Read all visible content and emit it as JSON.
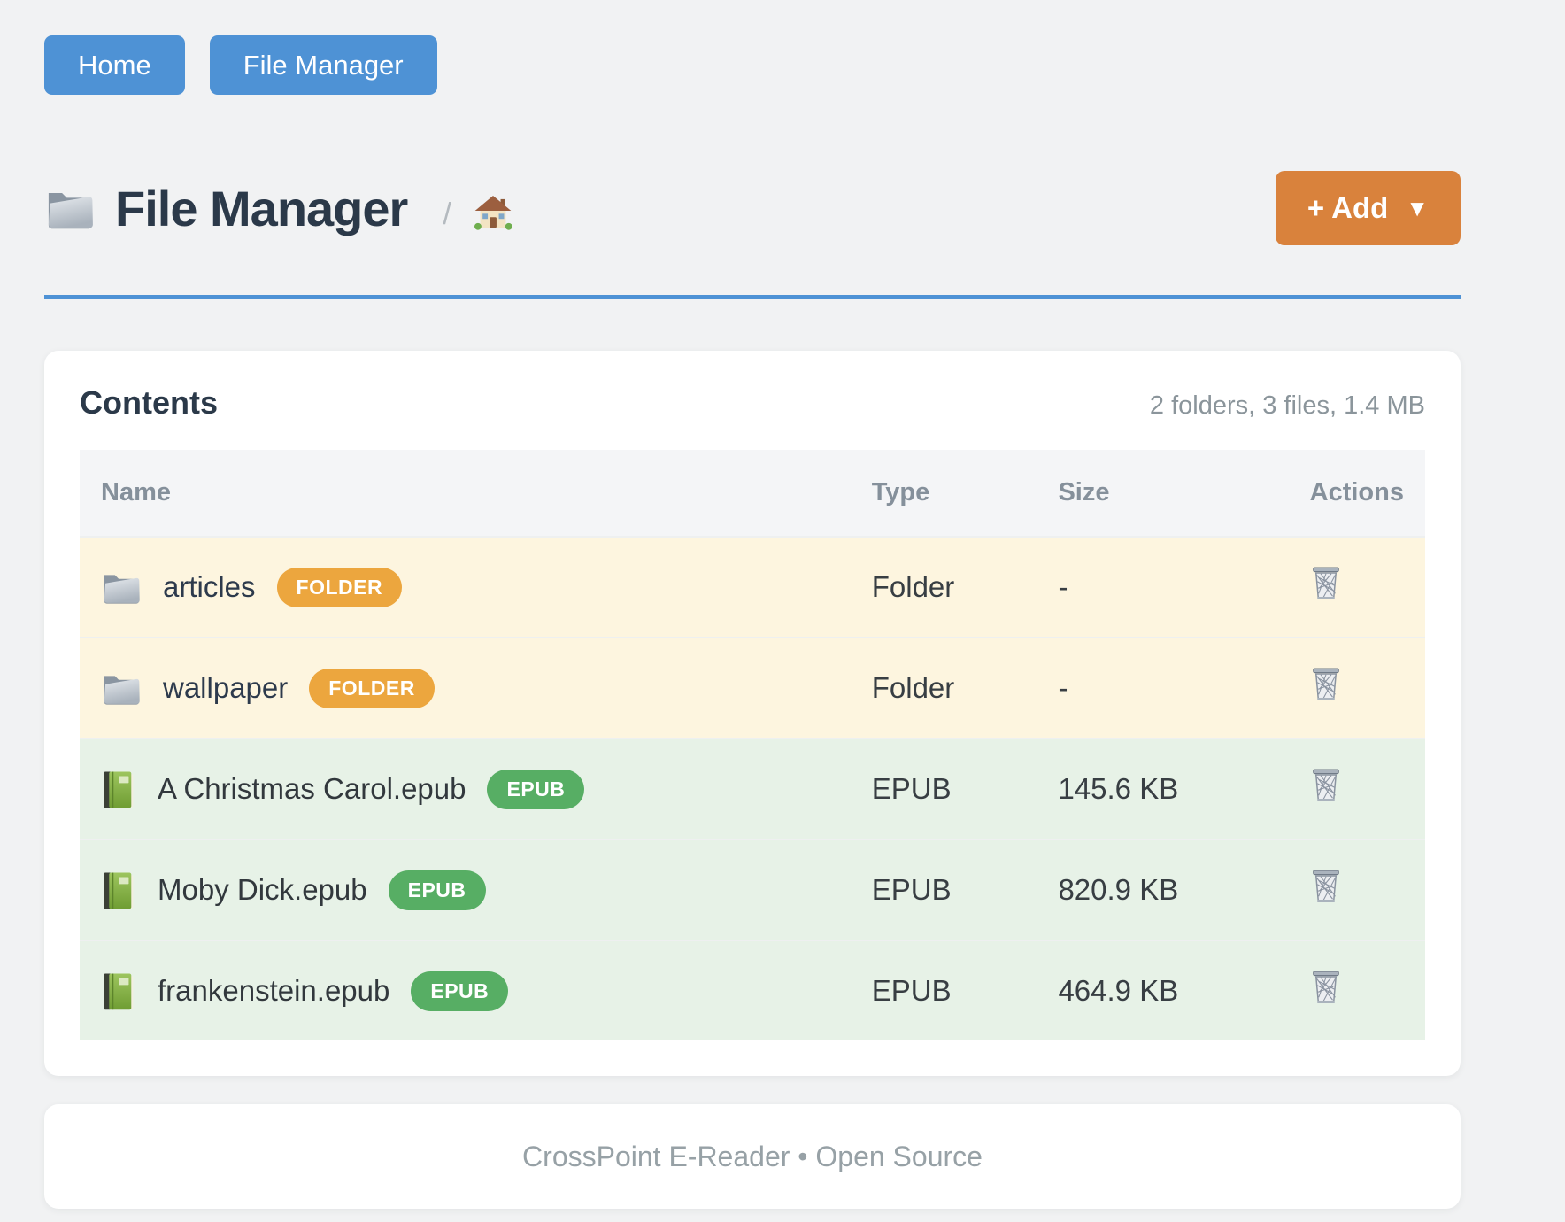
{
  "nav": {
    "home_label": "Home",
    "file_manager_label": "File Manager"
  },
  "header": {
    "title": "File Manager",
    "title_icon": "folder-icon",
    "breadcrumb_separator": "/",
    "breadcrumb_home_icon": "house-icon",
    "add_button": {
      "label": "+ Add",
      "caret": "▼"
    }
  },
  "content": {
    "heading": "Contents",
    "summary": "2 folders, 3 files, 1.4 MB",
    "table": {
      "columns": [
        "Name",
        "Type",
        "Size",
        "Actions"
      ],
      "rows": [
        {
          "name": "articles",
          "badge": "FOLDER",
          "type": "Folder",
          "size": "-",
          "icon": "folder",
          "kind": "folder",
          "action_icon": "trash-icon"
        },
        {
          "name": "wallpaper",
          "badge": "FOLDER",
          "type": "Folder",
          "size": "-",
          "icon": "folder",
          "kind": "folder",
          "action_icon": "trash-icon"
        },
        {
          "name": "A Christmas Carol.epub",
          "badge": "EPUB",
          "type": "EPUB",
          "size": "145.6 KB",
          "icon": "book",
          "kind": "epub",
          "action_icon": "trash-icon"
        },
        {
          "name": "Moby Dick.epub",
          "badge": "EPUB",
          "type": "EPUB",
          "size": "820.9 KB",
          "icon": "book",
          "kind": "epub",
          "action_icon": "trash-icon"
        },
        {
          "name": "frankenstein.epub",
          "badge": "EPUB",
          "type": "EPUB",
          "size": "464.9 KB",
          "icon": "book",
          "kind": "epub",
          "action_icon": "trash-icon"
        }
      ]
    }
  },
  "footer": {
    "text": "CrossPoint E-Reader • Open Source"
  },
  "colors": {
    "accent_blue": "#4e92d5",
    "add_orange": "#d9823c",
    "folder_badge_orange": "#eca63e",
    "epub_badge_green": "#57ae64",
    "folder_row_bg": "#fdf5df",
    "epub_row_bg": "#e7f2e7",
    "heading_dark": "#2b3949",
    "muted_gray": "#8b959b",
    "page_bg": "#f1f2f3"
  }
}
